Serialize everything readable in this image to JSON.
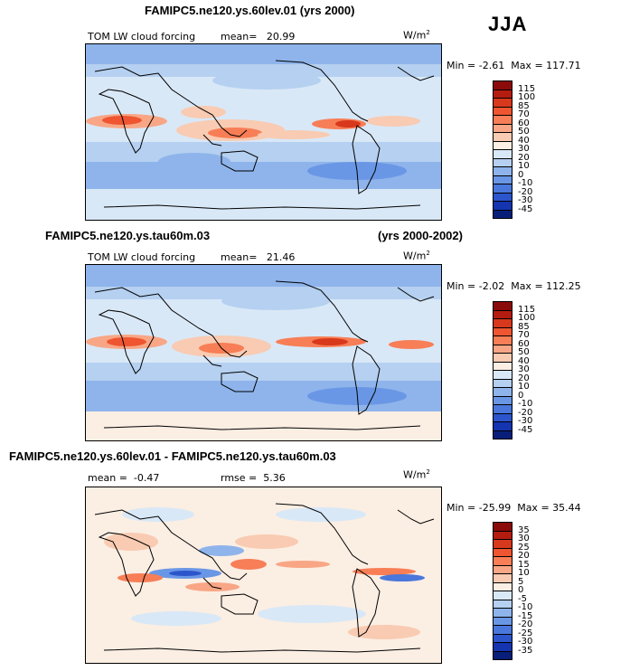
{
  "season": "JJA",
  "units_base": "W/m",
  "units_exp": "2",
  "panels": [
    {
      "title": "FAMIPC5.ne120.ys.60lev.01 (yrs 2000)",
      "title_right": "",
      "variable": "TOM LW cloud forcing",
      "mean_label": "mean=",
      "mean_value": "20.99",
      "rmse_label": "",
      "rmse_value": "",
      "min_label": "Min =",
      "min_value": "-2.61",
      "max_label": "Max =",
      "max_value": "117.71"
    },
    {
      "title": "FAMIPC5.ne120.ys.tau60m.03",
      "title_right": "(yrs 2000-2002)",
      "variable": "TOM LW cloud forcing",
      "mean_label": "mean=",
      "mean_value": "21.46",
      "rmse_label": "",
      "rmse_value": "",
      "min_label": "Min =",
      "min_value": "-2.02",
      "max_label": "Max =",
      "max_value": "112.25"
    },
    {
      "title": "FAMIPC5.ne120.ys.60lev.01 - FAMIPC5.ne120.ys.tau60m.03",
      "title_right": "",
      "variable": "",
      "mean_label": "mean =",
      "mean_value": "-0.47",
      "rmse_label": "rmse =",
      "rmse_value": "5.36",
      "min_label": "Min =",
      "min_value": "-25.99",
      "max_label": "Max =",
      "max_value": "35.44"
    }
  ],
  "chart_data": {
    "type": "heatmap",
    "colorbars": [
      {
        "levels": [
          "115",
          "100",
          "85",
          "70",
          "60",
          "50",
          "40",
          "30",
          "20",
          "10",
          "0",
          "-10",
          "-20",
          "-30",
          "-45"
        ],
        "colors": [
          "#8b0a0a",
          "#b51c10",
          "#d8381c",
          "#ee5530",
          "#f77e56",
          "#f8a685",
          "#f8cbb2",
          "#fbeee3",
          "#d9e8f7",
          "#b5d0f0",
          "#8eb4eb",
          "#6a97e5",
          "#4a77dc",
          "#2c55cc",
          "#1434b0",
          "#081f7a"
        ]
      },
      {
        "levels": [
          "35",
          "30",
          "25",
          "20",
          "15",
          "10",
          "5",
          "0",
          "-5",
          "-10",
          "-15",
          "-20",
          "-25",
          "-30",
          "-35"
        ],
        "colors": [
          "#8b0a0a",
          "#b51c10",
          "#d8381c",
          "#ee5530",
          "#f77e56",
          "#f8a685",
          "#f8cbb2",
          "#fbeee3",
          "#d9e8f7",
          "#b5d0f0",
          "#8eb4eb",
          "#6a97e5",
          "#4a77dc",
          "#2c55cc",
          "#1434b0",
          "#081f7a"
        ]
      }
    ]
  }
}
